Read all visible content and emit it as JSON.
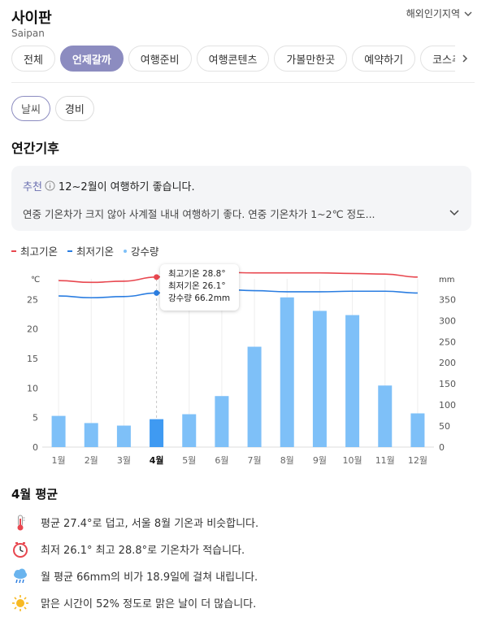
{
  "header": {
    "title": "사이판",
    "subtitle": "Saipan",
    "region_label": "해외인기지역"
  },
  "tabs": [
    {
      "label": "전체",
      "active": false
    },
    {
      "label": "언제갈까",
      "active": true
    },
    {
      "label": "여행준비",
      "active": false
    },
    {
      "label": "여행콘텐츠",
      "active": false
    },
    {
      "label": "가볼만한곳",
      "active": false
    },
    {
      "label": "예약하기",
      "active": false
    },
    {
      "label": "코스추천",
      "active": false
    }
  ],
  "subtabs": [
    {
      "label": "날씨",
      "active": true
    },
    {
      "label": "경비",
      "active": false
    }
  ],
  "section_title": "연간기후",
  "recommendation": {
    "label": "추천",
    "headline": "12~2월이 여행하기 좋습니다.",
    "detail": "연중 기온차가 크지 않아 사계절 내내 여행하기 좋다. 연중 기온차가 1~2℃ 정도..."
  },
  "legend": [
    {
      "label": "최고기온",
      "color": "#e8474f"
    },
    {
      "label": "최저기온",
      "color": "#2a7de1"
    },
    {
      "label": "강수량",
      "color": "#7ec0f8"
    }
  ],
  "tooltip": {
    "line1": "최고기온 28.8°",
    "line2": "최저기온 26.1°",
    "line3": "강수량 66.2mm"
  },
  "chart_data": {
    "type": "bar",
    "categories": [
      "1월",
      "2월",
      "3월",
      "4월",
      "5월",
      "6월",
      "7월",
      "8월",
      "9월",
      "10월",
      "11월",
      "12월"
    ],
    "selected_index": 3,
    "left_axis": {
      "unit": "℃",
      "ticks": [
        0,
        5,
        10,
        15,
        20,
        25
      ],
      "range": [
        0,
        28.5
      ]
    },
    "right_axis": {
      "unit": "mm",
      "ticks": [
        0,
        50,
        100,
        150,
        200,
        250,
        300,
        350
      ],
      "range": [
        0,
        399
      ]
    },
    "series": [
      {
        "name": "최고기온",
        "type": "line",
        "axis": "left",
        "color": "#e8474f",
        "values": [
          28.2,
          27.9,
          28.1,
          28.8,
          29.3,
          29.6,
          29.5,
          29.5,
          29.5,
          29.4,
          29.3,
          28.8
        ]
      },
      {
        "name": "최저기온",
        "type": "line",
        "axis": "left",
        "color": "#2a7de1",
        "values": [
          25.6,
          25.3,
          25.5,
          26.1,
          26.7,
          26.7,
          26.5,
          26.3,
          26.3,
          26.4,
          26.4,
          26.1
        ]
      },
      {
        "name": "강수량",
        "type": "bar",
        "axis": "right",
        "color": "#7ec0f8",
        "selected_color": "#3f9af2",
        "values": [
          74,
          57,
          51,
          66.2,
          78,
          121,
          238,
          355,
          323,
          313,
          146,
          80
        ]
      }
    ],
    "grid": true,
    "legend_position": "top-left"
  },
  "month_avg": {
    "title": "4월 평균",
    "items": [
      {
        "icon": "thermometer-icon",
        "text": "평균 27.4°로 덥고, 서울 8월 기온과 비슷합니다."
      },
      {
        "icon": "clock-icon",
        "text": "최저 26.1° 최고 28.8°로 기온차가 적습니다."
      },
      {
        "icon": "rain-cloud-icon",
        "text": "월 평균 66mm의 비가 18.9일에 걸쳐 내립니다."
      },
      {
        "icon": "sun-icon",
        "text": "맑은 시간이 52% 정도로 맑은 날이 더 많습니다."
      }
    ]
  }
}
